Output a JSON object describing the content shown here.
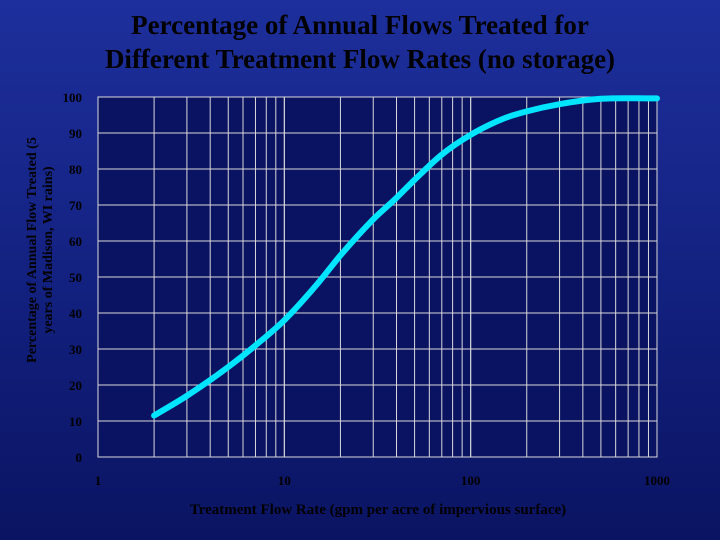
{
  "chart_data": {
    "type": "line",
    "title_lines": [
      "Percentage of Annual Flows Treated for",
      "Different Treatment Flow Rates (no storage)"
    ],
    "ylabel_lines": [
      "Percentage of Annual Flow Treated (5",
      "years of Madison, WI rains)"
    ],
    "xlabel": "Treatment Flow Rate (gpm per acre of impervious surface)",
    "x_scale": "log",
    "xlim": [
      1,
      1000
    ],
    "ylim": [
      0,
      100
    ],
    "x_ticks": [
      "1",
      "10",
      "100",
      "1000"
    ],
    "y_ticks": [
      "0",
      "10",
      "20",
      "30",
      "40",
      "50",
      "60",
      "70",
      "80",
      "90",
      "100"
    ],
    "grid": true,
    "series": [
      {
        "color": "#00e5ff",
        "x": [
          2,
          3,
          5,
          7,
          10,
          15,
          20,
          30,
          40,
          50,
          70,
          100,
          150,
          200,
          300,
          500,
          1000
        ],
        "y": [
          11.5,
          17,
          25,
          31,
          38,
          48,
          56,
          66,
          72,
          77,
          84,
          89.5,
          94,
          96,
          98,
          99.5,
          99.6
        ]
      }
    ]
  },
  "colors": {
    "plot_background": "#0a1262",
    "gridline": "#d9d9d9",
    "tick_label": "#000000"
  }
}
